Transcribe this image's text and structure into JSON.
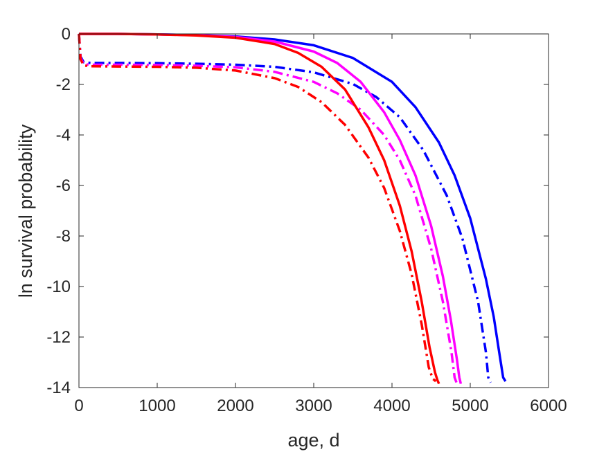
{
  "chart_data": {
    "type": "line",
    "title": "",
    "xlabel": "age, d",
    "ylabel": "ln survival probability",
    "xlim": [
      0,
      6000
    ],
    "ylim": [
      -14,
      0
    ],
    "xticks": [
      0,
      1000,
      2000,
      3000,
      4000,
      5000,
      6000
    ],
    "yticks": [
      0,
      -2,
      -4,
      -6,
      -8,
      -10,
      -12,
      -14
    ],
    "xtick_labels": [
      "0",
      "1000",
      "2000",
      "3000",
      "4000",
      "5000",
      "6000"
    ],
    "ytick_labels": [
      "0",
      "-2",
      "-4",
      "-6",
      "-8",
      "-10",
      "-12",
      "-14"
    ],
    "grid": false,
    "series": [
      {
        "color": "#0000ff",
        "style": "solid",
        "x": [
          0,
          500,
          1000,
          1500,
          2000,
          2500,
          3000,
          3500,
          4000,
          4300,
          4600,
          4800,
          5000,
          5200,
          5300,
          5380,
          5420,
          5450
        ],
        "values": [
          0,
          0,
          -0.02,
          -0.05,
          -0.1,
          -0.22,
          -0.45,
          -0.95,
          -1.9,
          -2.9,
          -4.3,
          -5.6,
          -7.3,
          -9.7,
          -11.2,
          -12.8,
          -13.6,
          -13.75
        ]
      },
      {
        "color": "#0000ff",
        "style": "dashdot",
        "x": [
          0,
          20,
          60,
          150,
          500,
          1000,
          1500,
          2000,
          2500,
          3000,
          3500,
          3800,
          4100,
          4400,
          4700,
          4900,
          5100,
          5200,
          5230,
          5260
        ],
        "values": [
          0,
          -0.9,
          -1.12,
          -1.15,
          -1.15,
          -1.16,
          -1.18,
          -1.22,
          -1.3,
          -1.52,
          -1.98,
          -2.5,
          -3.3,
          -4.6,
          -6.4,
          -8.1,
          -10.6,
          -12.6,
          -13.6,
          -13.8
        ]
      },
      {
        "color": "#ff00ff",
        "style": "solid",
        "x": [
          0,
          500,
          1000,
          1500,
          2000,
          2500,
          3000,
          3300,
          3600,
          3900,
          4100,
          4300,
          4500,
          4650,
          4750,
          4830,
          4860,
          4880
        ],
        "values": [
          0,
          0,
          -0.02,
          -0.05,
          -0.12,
          -0.3,
          -0.7,
          -1.15,
          -1.9,
          -3.1,
          -4.2,
          -5.6,
          -7.6,
          -9.6,
          -11.3,
          -12.9,
          -13.6,
          -13.85
        ]
      },
      {
        "color": "#ff00ff",
        "style": "dashdot",
        "x": [
          0,
          20,
          60,
          150,
          500,
          1000,
          1500,
          2000,
          2500,
          3000,
          3300,
          3600,
          3900,
          4100,
          4300,
          4500,
          4650,
          4760,
          4800,
          4830
        ],
        "values": [
          0,
          -0.95,
          -1.2,
          -1.22,
          -1.22,
          -1.23,
          -1.26,
          -1.32,
          -1.5,
          -1.9,
          -2.35,
          -3.0,
          -4.0,
          -5.0,
          -6.4,
          -8.5,
          -10.6,
          -12.6,
          -13.6,
          -13.85
        ]
      },
      {
        "color": "#ff0000",
        "style": "solid",
        "x": [
          0,
          500,
          1000,
          1500,
          2000,
          2500,
          2800,
          3100,
          3400,
          3700,
          3900,
          4100,
          4250,
          4380,
          4480,
          4550,
          4580,
          4600
        ],
        "values": [
          0,
          0,
          -0.02,
          -0.06,
          -0.15,
          -0.4,
          -0.75,
          -1.3,
          -2.2,
          -3.7,
          -5.0,
          -6.8,
          -8.6,
          -10.6,
          -12.4,
          -13.4,
          -13.7,
          -13.85
        ]
      },
      {
        "color": "#ff0000",
        "style": "dashdot",
        "x": [
          0,
          20,
          60,
          150,
          500,
          1000,
          1500,
          2000,
          2500,
          2800,
          3100,
          3400,
          3700,
          3900,
          4100,
          4250,
          4380,
          4470,
          4520,
          4560
        ],
        "values": [
          0,
          -1.0,
          -1.25,
          -1.28,
          -1.29,
          -1.3,
          -1.34,
          -1.45,
          -1.75,
          -2.1,
          -2.7,
          -3.6,
          -4.9,
          -6.1,
          -7.8,
          -9.5,
          -11.5,
          -13.2,
          -13.65,
          -13.75
        ]
      }
    ]
  }
}
